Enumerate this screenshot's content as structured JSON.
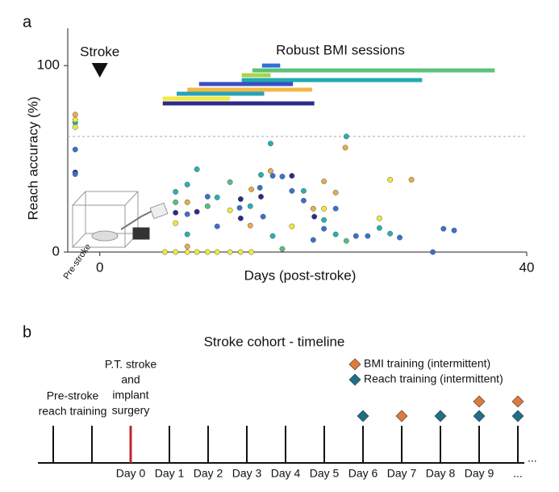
{
  "chart_data": {
    "type": "scatter",
    "panel": "a",
    "title": "Robust BMI sessions",
    "xlabel": "Days (post-stroke)",
    "ylabel": "Reach accuracy (%)",
    "xlim": [
      -3,
      40
    ],
    "ylim": [
      0,
      120
    ],
    "xticks": [
      0,
      40
    ],
    "yticks": [
      0,
      100
    ],
    "pre_label": "Pre-stroke",
    "annotation": "Stroke",
    "annotation_x": 0,
    "reference_line": 62,
    "intervals": [
      {
        "start": 15.2,
        "end": 16.9,
        "y": 100,
        "color": "#2f6fd6"
      },
      {
        "start": 14.3,
        "end": 37.0,
        "y": 97.4,
        "color": "#5cc27a"
      },
      {
        "start": 13.3,
        "end": 16.0,
        "y": 94.8,
        "color": "#a8d44a"
      },
      {
        "start": 13.3,
        "end": 30.2,
        "y": 92.2,
        "color": "#21a9b0"
      },
      {
        "start": 9.3,
        "end": 18.1,
        "y": 90.1,
        "color": "#3a4fc4"
      },
      {
        "start": 8.2,
        "end": 19.9,
        "y": 87.1,
        "color": "#f0b84a"
      },
      {
        "start": 7.2,
        "end": 15.4,
        "y": 84.9,
        "color": "#27a2b8"
      },
      {
        "start": 5.9,
        "end": 12.2,
        "y": 82.3,
        "color": "#f4ea3c"
      },
      {
        "start": 5.9,
        "end": 20.1,
        "y": 79.7,
        "color": "#2e2a8a"
      }
    ],
    "series": [
      {
        "color": "#2e2a8a",
        "x": [
          -2.3,
          7.1,
          9.1,
          13.2,
          13.2,
          15.1,
          18,
          20.1
        ],
        "y": [
          42.7,
          21.1,
          21.6,
          28.4,
          18.1,
          29.7,
          40.9,
          19
        ]
      },
      {
        "color": "#3b6fd1",
        "x": [
          -2.3,
          -2.3,
          8.2,
          10.1,
          11,
          13.1,
          15,
          15.3,
          16.2,
          17.1,
          18,
          19.1,
          20,
          21,
          22.1,
          24,
          25.1,
          28.1,
          31.2,
          32.2,
          33.2
        ],
        "y": [
          55,
          41.8,
          20.3,
          29.7,
          13.8,
          23.7,
          34.5,
          19,
          40.9,
          40.5,
          32.8,
          27.6,
          6.5,
          12.5,
          23.3,
          8.6,
          8.6,
          7.8,
          0,
          12.5,
          11.6
        ]
      },
      {
        "color": "#22b3b3",
        "x": [
          -2.3,
          7.1,
          8.2,
          8.2,
          9.1,
          11,
          14.1,
          15.1,
          16,
          16.2,
          19.1,
          21,
          22.1,
          23.1,
          26.2,
          27.2
        ],
        "y": [
          69.4,
          32.3,
          36.2,
          9.5,
          44.4,
          29.3,
          24.6,
          41.4,
          58.2,
          8.6,
          32.8,
          17.2,
          9.5,
          62,
          12.9,
          9.9
        ]
      },
      {
        "color": "#56c07c",
        "x": [
          7.1,
          10.1,
          12.2,
          17.1,
          23.1
        ],
        "y": [
          26.7,
          24.6,
          37.5,
          1.7,
          6
        ]
      },
      {
        "color": "#f2e83c",
        "x": [
          -2.3,
          -2.3,
          7.1,
          6.1,
          7.1,
          8.2,
          9.1,
          10.1,
          11,
          12.2,
          12.2,
          13.2,
          14.2,
          18,
          21,
          26.2,
          27.2
        ],
        "y": [
          71,
          67,
          15.5,
          0,
          0,
          0,
          0,
          0,
          0,
          0,
          22.4,
          0,
          0,
          13.8,
          23.3,
          18.1,
          38.8
        ]
      },
      {
        "color": "#e8ac4c",
        "x": [
          -2.3,
          8.2,
          8.2,
          14.1,
          14.2,
          16,
          20,
          21,
          22.1,
          23,
          29.2
        ],
        "y": [
          73.7,
          26.7,
          3,
          14.2,
          33.6,
          43.5,
          23.3,
          37.9,
          31.9,
          56,
          38.8
        ]
      }
    ]
  },
  "timeline": {
    "panel": "b",
    "title": "Stroke cohort - timeline",
    "legend": [
      {
        "name": "BMI training (intermittent)",
        "color": "#e07a3c"
      },
      {
        "name": "Reach training (intermittent)",
        "color": "#1f6f8b"
      }
    ],
    "pre_stroke_label": [
      "Pre-stroke",
      "reach training"
    ],
    "stroke_label": [
      "P.T. stroke",
      "and",
      "implant",
      "surgery"
    ],
    "continuation": "...",
    "ticks": [
      {
        "label": null,
        "bmi": false,
        "reach": false,
        "stroke": false
      },
      {
        "label": null,
        "bmi": false,
        "reach": false,
        "stroke": false
      },
      {
        "label": "Day 0",
        "bmi": false,
        "reach": false,
        "stroke": true
      },
      {
        "label": "Day 1",
        "bmi": false,
        "reach": false,
        "stroke": false
      },
      {
        "label": "Day 2",
        "bmi": false,
        "reach": false,
        "stroke": false
      },
      {
        "label": "Day 3",
        "bmi": false,
        "reach": false,
        "stroke": false
      },
      {
        "label": "Day 4",
        "bmi": false,
        "reach": false,
        "stroke": false
      },
      {
        "label": "Day 5",
        "bmi": false,
        "reach": false,
        "stroke": false
      },
      {
        "label": "Day 6",
        "bmi": false,
        "reach": true,
        "stroke": false
      },
      {
        "label": "Day 7",
        "bmi": true,
        "reach": false,
        "stroke": false
      },
      {
        "label": "Day 8",
        "bmi": false,
        "reach": true,
        "stroke": false
      },
      {
        "label": "Day 9",
        "bmi": true,
        "reach": true,
        "stroke": false
      },
      {
        "label": "...",
        "bmi": true,
        "reach": true,
        "stroke": false
      }
    ]
  }
}
